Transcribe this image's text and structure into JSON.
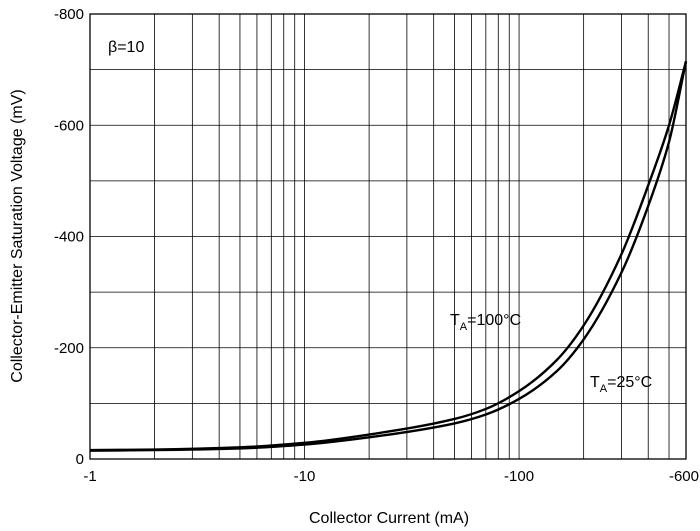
{
  "chart_data": {
    "type": "line",
    "title": "",
    "xlabel": "Collector Current (mA)",
    "ylabel": "Collector-Emitter Saturation Voltage (mV)",
    "x_scale": "log",
    "x_axis_direction": "negative values, magnitude increasing to the right",
    "xlim": [
      -1,
      -600
    ],
    "ylim": [
      0,
      -800
    ],
    "y_axis_direction": "more negative values upward",
    "x_ticks": [
      -1,
      -10,
      -100,
      -600
    ],
    "x_tick_labels": [
      "-1",
      "-10",
      "-100",
      "-600"
    ],
    "y_ticks": [
      0,
      -200,
      -400,
      -600,
      -800
    ],
    "y_tick_labels": [
      "0",
      "-200",
      "-400",
      "-600",
      "-800"
    ],
    "grid": true,
    "annotations": [
      {
        "text": "β=10"
      },
      {
        "text_main": "T",
        "text_sub": "A",
        "text_rest": "=100°C"
      },
      {
        "text_main": "T",
        "text_sub": "A",
        "text_rest": "=25°C"
      }
    ],
    "series": [
      {
        "x": [
          -1,
          -2,
          -5,
          -10,
          -20,
          -50,
          -70,
          -100,
          -150,
          -200,
          -300,
          -400,
          -500,
          -600
        ],
        "y": [
          -16,
          -17,
          -21,
          -29,
          -44,
          -72,
          -90,
          -122,
          -178,
          -240,
          -368,
          -492,
          -600,
          -715
        ]
      },
      {
        "x": [
          -1,
          -2,
          -5,
          -10,
          -20,
          -50,
          -70,
          -100,
          -150,
          -200,
          -300,
          -400,
          -500,
          -600
        ],
        "y": [
          -15,
          -16,
          -19,
          -26,
          -39,
          -64,
          -80,
          -108,
          -158,
          -215,
          -335,
          -455,
          -570,
          -715
        ]
      }
    ],
    "colors": {
      "line": "#000000",
      "grid": "#000000"
    }
  }
}
